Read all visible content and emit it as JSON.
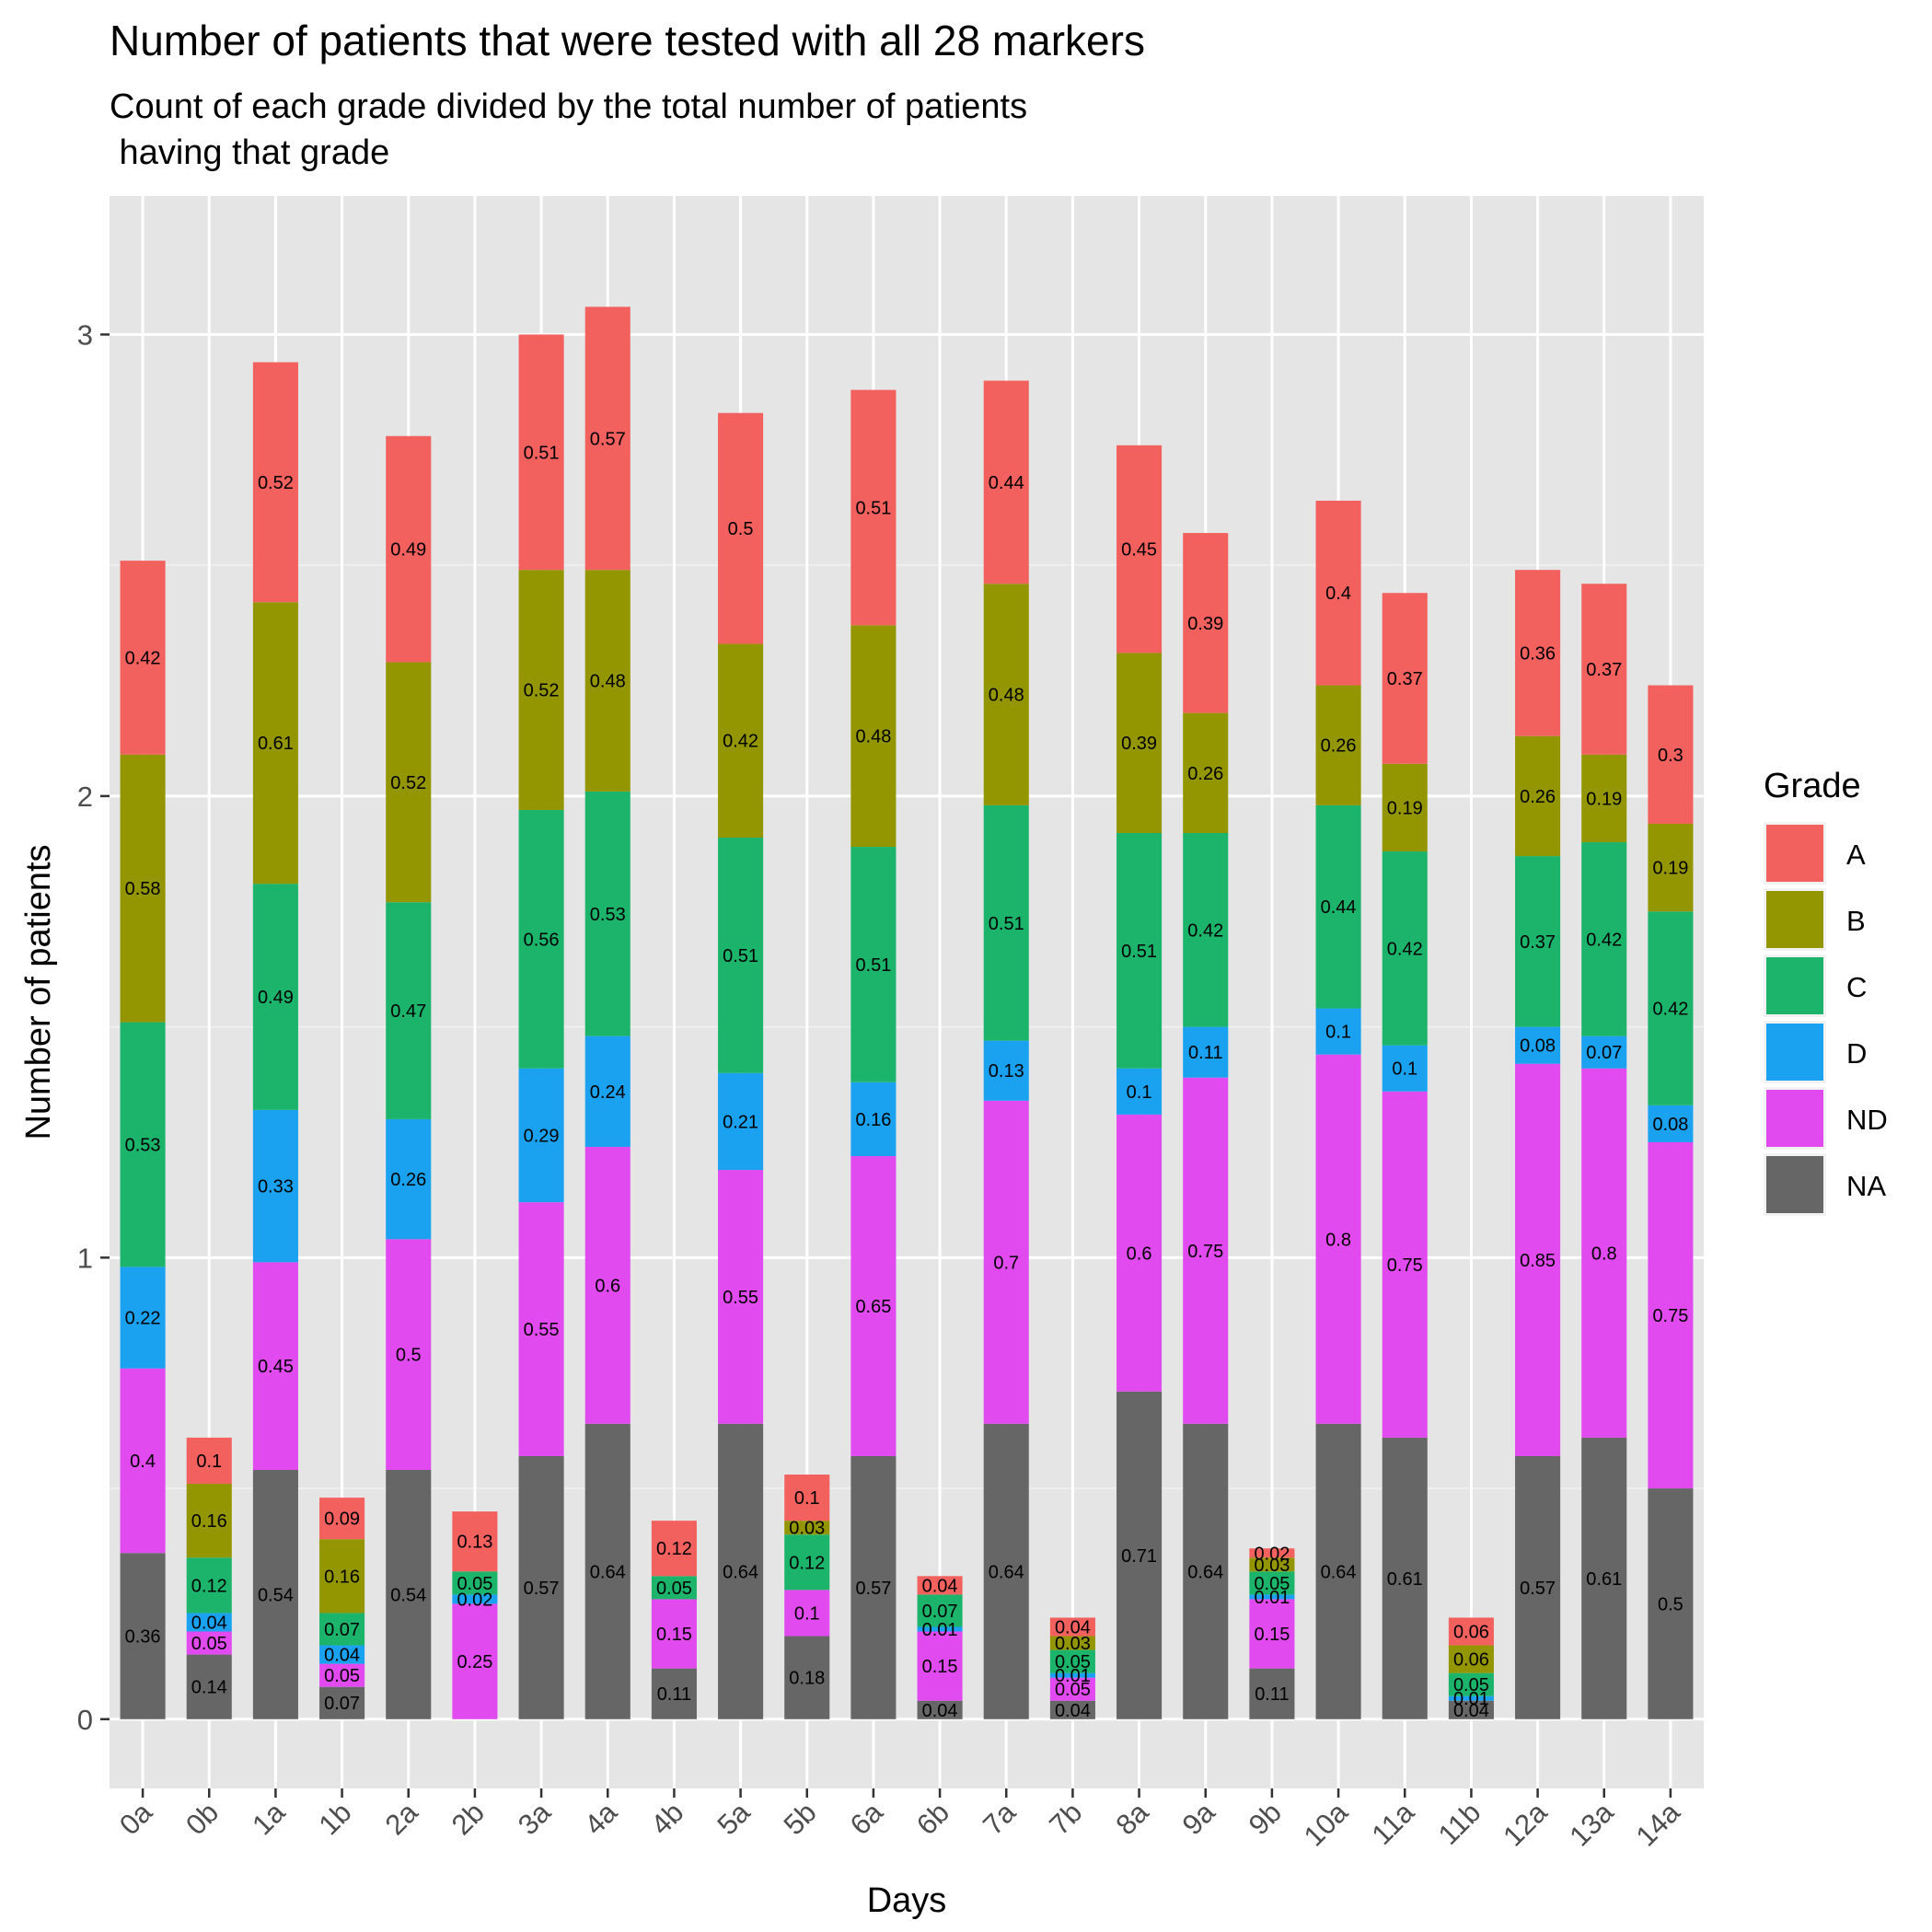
{
  "chart_data": {
    "type": "bar",
    "stacked": true,
    "title": "Number of patients that were tested with all 28 markers",
    "subtitle_lines": [
      "Count of each grade divided by the total number of patients",
      " having that grade"
    ],
    "xlabel": "Days",
    "ylabel": "Number of patients",
    "ylim": [
      -0.15,
      3.3
    ],
    "yticks": [
      0,
      1,
      2,
      3
    ],
    "grid": true,
    "legend": {
      "title": "Grade",
      "position": "right"
    },
    "categories": [
      "0a",
      "0b",
      "1a",
      "1b",
      "2a",
      "2b",
      "3a",
      "4a",
      "4b",
      "5a",
      "5b",
      "6a",
      "6b",
      "7a",
      "7b",
      "8a",
      "9a",
      "9b",
      "10a",
      "11a",
      "11b",
      "12a",
      "13a",
      "14a"
    ],
    "series": [
      {
        "name": "NA",
        "color": "#666666",
        "values": [
          0.36,
          0.14,
          0.54,
          0.07,
          0.54,
          0,
          0.57,
          0.64,
          0.11,
          0.64,
          0.18,
          0.57,
          0.04,
          0.64,
          0.04,
          0.71,
          0.64,
          0.11,
          0.64,
          0.61,
          0.04,
          0.57,
          0.61,
          0.5
        ],
        "labels": [
          "0.36",
          "0.14",
          "0.54",
          "0.07",
          "0.54",
          "",
          "0.57",
          "0.64",
          "0.11",
          "0.64",
          "0.18",
          "0.57",
          "0.04",
          "0.64",
          "0.04",
          "0.71",
          "0.64",
          "0.11",
          "0.64",
          "0.61",
          "0.04",
          "0.57",
          "0.61",
          "0.5"
        ]
      },
      {
        "name": "ND",
        "color": "#E04AEF",
        "values": [
          0.4,
          0.05,
          0.45,
          0.05,
          0.5,
          0.25,
          0.55,
          0.6,
          0.15,
          0.55,
          0.1,
          0.65,
          0.15,
          0.7,
          0.05,
          0.6,
          0.75,
          0.15,
          0.8,
          0.75,
          0,
          0.85,
          0.8,
          0.75
        ],
        "labels": [
          "0.4",
          "0.05",
          "0.45",
          "0.05",
          "0.5",
          "0.25",
          "0.55",
          "0.6",
          "0.15",
          "0.55",
          "0.1",
          "0.65",
          "0.15",
          "0.7",
          "0.05",
          "0.6",
          "0.75",
          "0.15",
          "0.8",
          "0.75",
          "",
          "0.85",
          "0.8",
          "0.75"
        ]
      },
      {
        "name": "D",
        "color": "#1AA1F0",
        "values": [
          0.22,
          0.04,
          0.33,
          0.04,
          0.26,
          0.02,
          0.29,
          0.24,
          0,
          0.21,
          0,
          0.16,
          0.01,
          0.13,
          0.01,
          0.1,
          0.11,
          0.01,
          0.1,
          0.1,
          0.01,
          0.08,
          0.07,
          0.08
        ],
        "labels": [
          "0.22",
          "0.04",
          "0.33",
          "0.04",
          "0.26",
          "0.02",
          "0.29",
          "0.24",
          "",
          "0.21",
          "",
          "0.16",
          "0.01",
          "0.13",
          "0.01",
          "0.1",
          "0.11",
          "0.01",
          "0.1",
          "0.1",
          "0.01",
          "0.08",
          "0.07",
          "0.08"
        ]
      },
      {
        "name": "C",
        "color": "#1CB46B",
        "values": [
          0.53,
          0.12,
          0.49,
          0.07,
          0.47,
          0.05,
          0.56,
          0.53,
          0.05,
          0.51,
          0.12,
          0.51,
          0.07,
          0.51,
          0.05,
          0.51,
          0.42,
          0.05,
          0.44,
          0.42,
          0.05,
          0.37,
          0.42,
          0.42
        ],
        "labels": [
          "0.53",
          "0.12",
          "0.49",
          "0.07",
          "0.47",
          "0.05",
          "0.56",
          "0.53",
          "0.05",
          "0.51",
          "0.12",
          "0.51",
          "0.07",
          "0.51",
          "0.05",
          "0.51",
          "0.42",
          "0.05",
          "0.44",
          "0.42",
          "0.05",
          "0.37",
          "0.42",
          "0.42"
        ]
      },
      {
        "name": "B",
        "color": "#939600",
        "values": [
          0.58,
          0.16,
          0.61,
          0.16,
          0.52,
          0,
          0.52,
          0.48,
          0,
          0.42,
          0.03,
          0.48,
          0,
          0.48,
          0.03,
          0.39,
          0.26,
          0.03,
          0.26,
          0.19,
          0.06,
          0.26,
          0.19,
          0.19
        ],
        "labels": [
          "0.58",
          "0.16",
          "0.61",
          "0.16",
          "0.52",
          "",
          "0.52",
          "0.48",
          "",
          "0.42",
          "0.03",
          "0.48",
          "",
          "0.48",
          "0.03",
          "0.39",
          "0.26",
          "0.03",
          "0.26",
          "0.19",
          "0.06",
          "0.26",
          "0.19",
          "0.19"
        ]
      },
      {
        "name": "A",
        "color": "#F2615D",
        "values": [
          0.42,
          0.1,
          0.52,
          0.09,
          0.49,
          0.13,
          0.51,
          0.57,
          0.12,
          0.5,
          0.1,
          0.51,
          0.04,
          0.44,
          0.04,
          0.45,
          0.39,
          0.02,
          0.4,
          0.37,
          0.06,
          0.36,
          0.37,
          0.3
        ],
        "labels": [
          "0.42",
          "0.1",
          "0.52",
          "0.09",
          "0.49",
          "0.13",
          "0.51",
          "0.57",
          "0.12",
          "0.5",
          "0.1",
          "0.51",
          "0.04",
          "0.44",
          "0.04",
          "0.45",
          "0.39",
          "0.02",
          "0.4",
          "0.37",
          "0.06",
          "0.36",
          "0.37",
          "0.3"
        ]
      }
    ],
    "legend_order": [
      "A",
      "B",
      "C",
      "D",
      "ND",
      "NA"
    ]
  }
}
